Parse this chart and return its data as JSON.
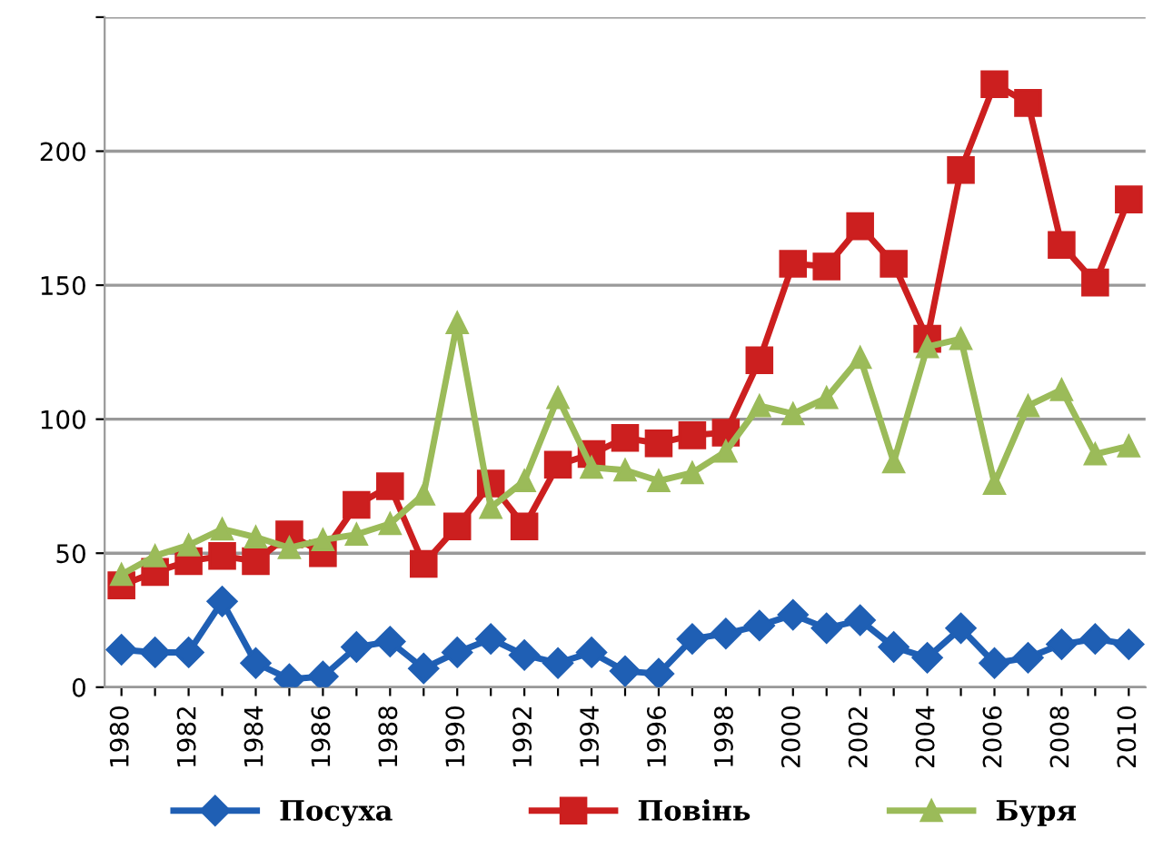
{
  "chart_data": {
    "type": "line",
    "categories": [
      "1980",
      null,
      "1982",
      null,
      "1984",
      null,
      "1986",
      null,
      "1988",
      null,
      "1990",
      null,
      "1992",
      null,
      "1994",
      null,
      "1996",
      null,
      "1998",
      null,
      "2000",
      null,
      "2002",
      null,
      "2004",
      null,
      "2006",
      null,
      "2008",
      null,
      "2010"
    ],
    "series": [
      {
        "name": "Посуха",
        "color": "#1f5fb4",
        "marker": "diamond",
        "values": [
          14,
          13,
          13,
          32,
          9,
          3,
          4,
          15,
          17,
          7,
          13,
          18,
          12,
          9,
          13,
          6,
          5,
          18,
          20,
          23,
          27,
          22,
          25,
          15,
          11,
          22,
          9,
          11,
          16,
          18,
          16
        ]
      },
      {
        "name": "Повінь",
        "color": "#cc1f1f",
        "marker": "square",
        "values": [
          38,
          43,
          47,
          49,
          47,
          57,
          50,
          68,
          75,
          46,
          60,
          76,
          60,
          83,
          87,
          93,
          91,
          94,
          95,
          122,
          158,
          157,
          172,
          158,
          130,
          193,
          225,
          218,
          165,
          151,
          182
        ]
      },
      {
        "name": "Буря",
        "color": "#9bbb59",
        "marker": "triangle",
        "values": [
          42,
          49,
          53,
          59,
          56,
          52,
          55,
          57,
          61,
          72,
          136,
          67,
          77,
          108,
          82,
          81,
          77,
          80,
          88,
          105,
          102,
          108,
          123,
          84,
          127,
          130,
          76,
          105,
          111,
          87,
          90
        ]
      }
    ],
    "ylim": [
      0,
      250
    ],
    "yticks": [
      0,
      50,
      100,
      150,
      200,
      {
        "value": 250,
        "label": null
      }
    ],
    "grid": "y",
    "legend": "bottom",
    "line_style": "solid"
  }
}
